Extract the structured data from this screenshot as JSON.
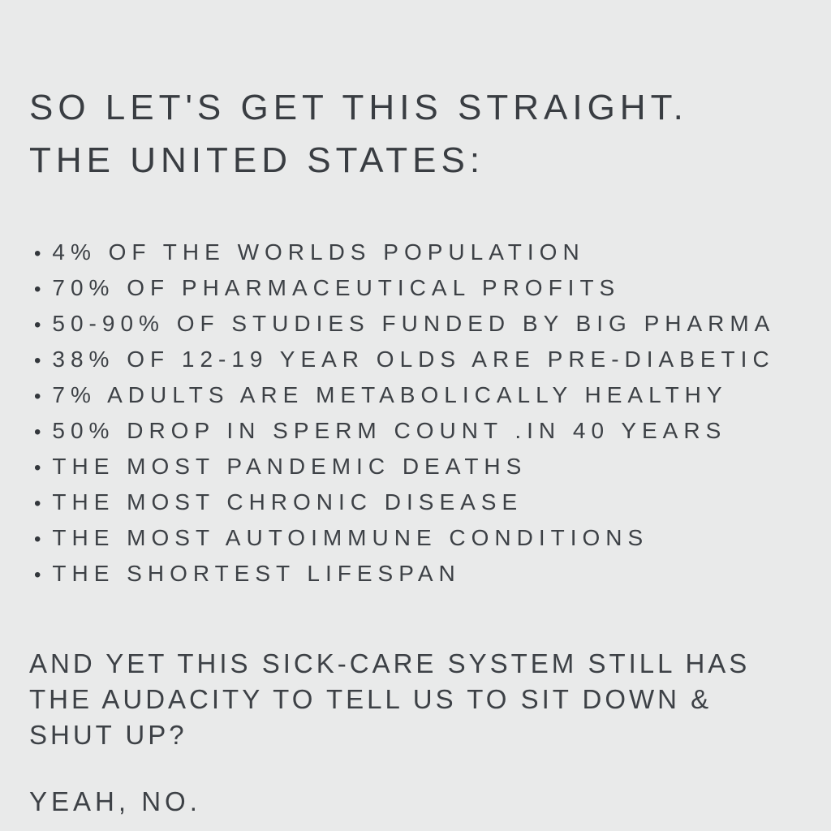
{
  "page": {
    "background_color": "#e9eaea",
    "text_color": "#3d4146"
  },
  "heading": {
    "lines": [
      "SO LET'S GET THIS STRAIGHT.",
      "THE UNITED STATES:"
    ]
  },
  "list": {
    "marker": "•",
    "items": [
      "4% OF THE WORLDS POPULATION",
      "70% OF PHARMACEUTICAL PROFITS",
      "50-90% OF STUDIES FUNDED BY BIG PHARMA",
      "38% OF 12-19 YEAR OLDS ARE PRE-DIABETIC",
      "7% ADULTS ARE METABOLICALLY HEALTHY",
      "50% DROP IN SPERM COUNT .IN 40 YEARS",
      "THE MOST PANDEMIC DEATHS",
      "THE MOST CHRONIC DISEASE",
      "THE MOST AUTOIMMUNE CONDITIONS",
      "THE SHORTEST LIFESPAN"
    ]
  },
  "closing": {
    "lines": [
      "AND YET THIS SICK-CARE SYSTEM STILL HAS",
      "THE AUDACITY TO TELL US TO SIT DOWN &",
      "SHUT UP?"
    ]
  },
  "tagline": "YEAH, NO."
}
